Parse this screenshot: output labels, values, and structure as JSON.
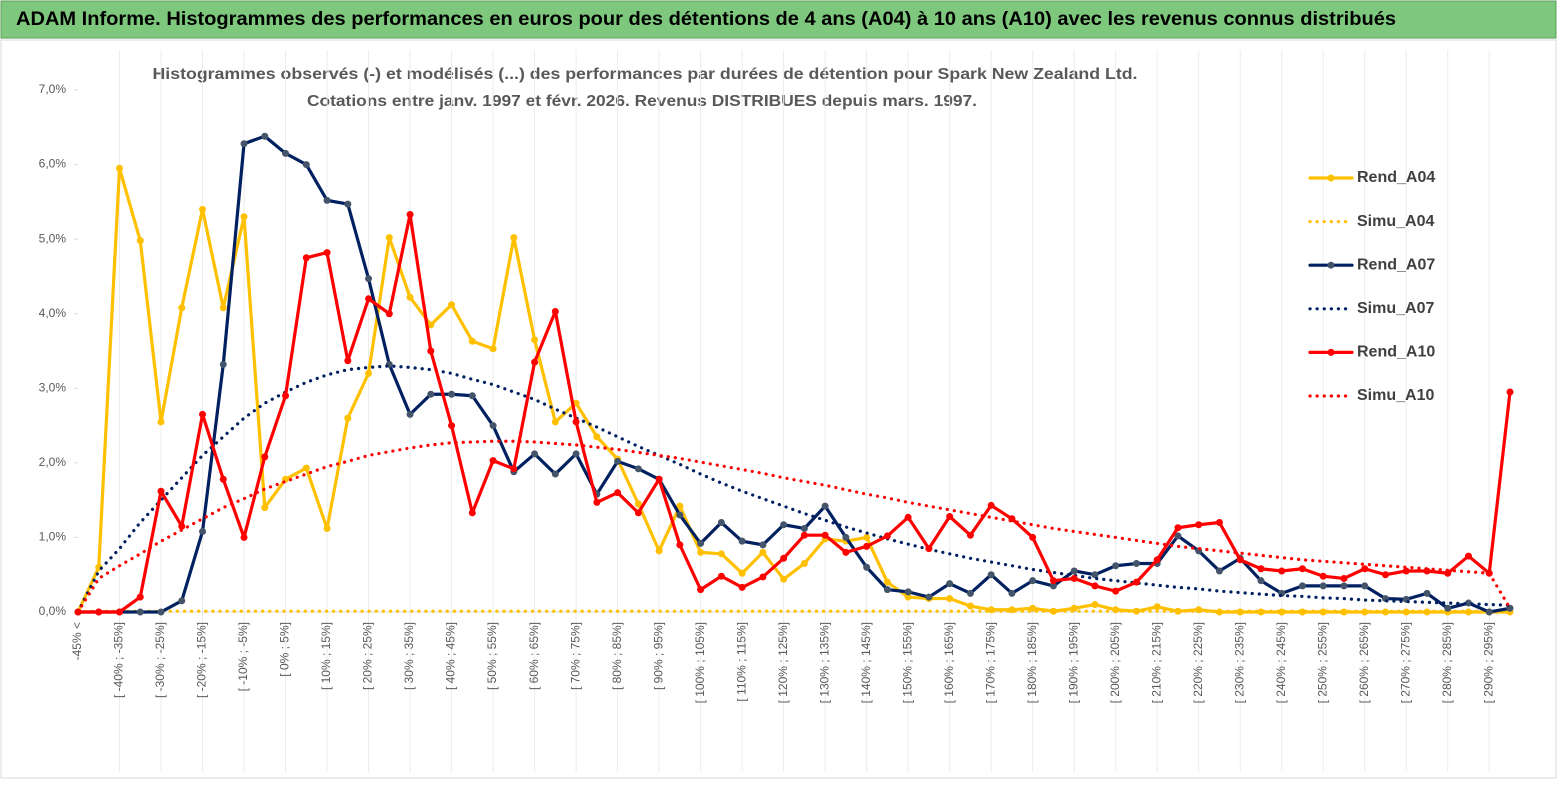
{
  "header": {
    "title": "ADAM Informe. Histogrammes des performances en euros pour des détentions de 4 ans (A04) à 10 ans (A10) avec les revenus connus distribués"
  },
  "chart_data": {
    "type": "line",
    "title": "Histogrammes observés (-) et modélisés (...) des performances par durées de détention pour Spark New Zealand Ltd.",
    "subtitle": "Cotations entre janv. 1997 et févr. 2026. Revenus DISTRIBUES depuis mars. 1997.",
    "categories": [
      "-45% <",
      null,
      "[ -40% ; -35%]",
      null,
      "[ -30% ; -25%]",
      null,
      "[ -20% ; -15%]",
      null,
      "[ -10% ; -5%]",
      null,
      "[ 0% ; 5%]",
      null,
      "[ 10% ; 15%]",
      null,
      "[ 20% ; 25%]",
      null,
      "[ 30% ; 35%]",
      null,
      "[ 40% ; 45%]",
      null,
      "[ 50% ; 55%]",
      null,
      "[ 60% ; 65%]",
      null,
      "[ 70% ; 75%]",
      null,
      "[ 80% ; 85%]",
      null,
      "[ 90% ; 95%]",
      null,
      "[ 100% ; 105%]",
      null,
      "[ 110% ; 115%]",
      null,
      "[ 120% ; 125%]",
      null,
      "[ 130% ; 135%]",
      null,
      "[ 140% ; 145%]",
      null,
      "[ 150% ; 155%]",
      null,
      "[ 160% ; 165%]",
      null,
      "[ 170% ; 175%]",
      null,
      "[ 180% ; 185%]",
      null,
      "[ 190% ; 195%]",
      null,
      "[ 200% ; 205%]",
      null,
      "[ 210% ; 215%]",
      null,
      "[ 220% ; 225%]",
      null,
      "[ 230% ; 235%]",
      null,
      "[ 240% ; 245%]",
      null,
      "[ 250% ; 255%]",
      null,
      "[ 260% ; 265%]",
      null,
      "[ 270% ; 275%]",
      null,
      "[ 280% ; 285%]",
      null,
      "[ 290% ; 295%]",
      null
    ],
    "ylim": [
      0,
      7
    ],
    "yticks": [
      {
        "value": 0,
        "label": "0,0%"
      },
      {
        "value": 1,
        "label": "1,0%"
      },
      {
        "value": 2,
        "label": "2,0%"
      },
      {
        "value": 3,
        "label": "3,0%"
      },
      {
        "value": 4,
        "label": "4,0%"
      },
      {
        "value": 5,
        "label": "5,0%"
      },
      {
        "value": 6,
        "label": "6,0%"
      },
      {
        "value": 7,
        "label": "7,0%"
      }
    ],
    "xgrid": true,
    "legend": "right",
    "series": [
      {
        "name": "Rend_A04",
        "color": "#ffc000",
        "marker_color": "#ffc000",
        "dash": "solid",
        "marker": true,
        "values": [
          0,
          0.6,
          5.95,
          4.98,
          2.55,
          4.08,
          5.4,
          4.08,
          5.3,
          1.4,
          1.78,
          1.93,
          1.12,
          2.6,
          3.2,
          5.02,
          4.22,
          3.85,
          4.12,
          3.63,
          3.53,
          5.02,
          3.65,
          2.55,
          2.8,
          2.35,
          2.05,
          1.45,
          0.82,
          1.42,
          0.8,
          0.78,
          0.52,
          0.8,
          0.44,
          0.65,
          0.98,
          0.95,
          1.0,
          0.4,
          0.2,
          0.18,
          0.18,
          0.08,
          0.03,
          0.03,
          0.05,
          0.01,
          0.05,
          0.1,
          0.03,
          0.01,
          0.07,
          0.01,
          0.03,
          0,
          0,
          0,
          0,
          0,
          0,
          0,
          0,
          0,
          0,
          0,
          0,
          0,
          0,
          0
        ]
      },
      {
        "name": "Simu_A04",
        "color": "#ffc000",
        "dash": "dotted",
        "marker": false,
        "values": [
          0,
          0.01,
          0.01,
          0.01,
          0.01,
          0.01,
          0.01,
          0.01,
          0.01,
          0.01,
          0.01,
          0.01,
          0.01,
          0.01,
          0.01,
          0.01,
          0.01,
          0.01,
          0.01,
          0.01,
          0.01,
          0.01,
          0.01,
          0.01,
          0.01,
          0.01,
          0.01,
          0.01,
          0.01,
          0.01,
          0.01,
          0.01,
          0.01,
          0.01,
          0.01,
          0.01,
          0.01,
          0.01,
          0.01,
          0.01,
          0.01,
          0.01,
          0.01,
          0.01,
          0.01,
          0.01,
          0.01,
          0.01,
          0.01,
          0.01,
          0.01,
          0.01,
          0.01,
          0.01,
          0.01,
          0.01,
          0.01,
          0.01,
          0.01,
          0.01,
          0.01,
          0.01,
          0.01,
          0.01,
          0.01,
          0.01,
          0.01,
          0.01,
          0.01,
          0.01
        ]
      },
      {
        "name": "Rend_A07",
        "color": "#002060",
        "marker_color": "#44546a",
        "dash": "solid",
        "marker": true,
        "values": [
          0,
          0,
          0,
          0,
          0,
          0.15,
          1.08,
          3.32,
          6.28,
          6.38,
          6.15,
          6.0,
          5.52,
          5.47,
          4.47,
          3.32,
          2.65,
          2.92,
          2.92,
          2.9,
          2.5,
          1.88,
          2.12,
          1.85,
          2.12,
          1.58,
          2.02,
          1.92,
          1.78,
          1.3,
          0.92,
          1.2,
          0.95,
          0.9,
          1.17,
          1.12,
          1.42,
          1.0,
          0.6,
          0.3,
          0.27,
          0.2,
          0.38,
          0.25,
          0.5,
          0.25,
          0.42,
          0.35,
          0.55,
          0.5,
          0.62,
          0.65,
          0.65,
          1.02,
          0.82,
          0.55,
          0.72,
          0.42,
          0.25,
          0.35,
          0.35,
          0.35,
          0.35,
          0.18,
          0.17,
          0.25,
          0.05,
          0.12,
          0,
          0.05
        ]
      },
      {
        "name": "Simu_A07",
        "color": "#002060",
        "dash": "dotted",
        "marker": false,
        "values": [
          0,
          0.55,
          0.85,
          1.2,
          1.5,
          1.8,
          2.1,
          2.35,
          2.6,
          2.8,
          2.95,
          3.08,
          3.18,
          3.25,
          3.28,
          3.3,
          3.28,
          3.25,
          3.2,
          3.12,
          3.05,
          2.95,
          2.85,
          2.72,
          2.6,
          2.48,
          2.35,
          2.22,
          2.1,
          1.98,
          1.85,
          1.73,
          1.62,
          1.52,
          1.42,
          1.32,
          1.23,
          1.14,
          1.06,
          0.98,
          0.91,
          0.84,
          0.78,
          0.72,
          0.67,
          0.62,
          0.57,
          0.53,
          0.49,
          0.45,
          0.42,
          0.39,
          0.36,
          0.33,
          0.31,
          0.28,
          0.26,
          0.24,
          0.22,
          0.21,
          0.19,
          0.18,
          0.16,
          0.15,
          0.14,
          0.13,
          0.12,
          0.11,
          0.1,
          0.09
        ]
      },
      {
        "name": "Rend_A10",
        "color": "#ff0000",
        "marker_color": "#ff0000",
        "dash": "solid",
        "marker": true,
        "values": [
          0,
          0,
          0,
          0.2,
          1.62,
          1.15,
          2.65,
          1.78,
          1.0,
          2.08,
          2.9,
          4.75,
          4.82,
          3.37,
          4.2,
          4.0,
          5.33,
          3.5,
          2.5,
          1.33,
          2.03,
          1.92,
          3.35,
          4.03,
          2.55,
          1.47,
          1.6,
          1.33,
          1.78,
          0.9,
          0.3,
          0.48,
          0.33,
          0.47,
          0.72,
          1.03,
          1.03,
          0.8,
          0.88,
          1.02,
          1.27,
          0.85,
          1.28,
          1.03,
          1.43,
          1.25,
          1.0,
          0.42,
          0.45,
          0.35,
          0.28,
          0.4,
          0.7,
          1.13,
          1.17,
          1.2,
          0.7,
          0.58,
          0.55,
          0.58,
          0.48,
          0.45,
          0.58,
          0.5,
          0.55,
          0.55,
          0.52,
          0.75,
          0.52,
          2.95
        ]
      },
      {
        "name": "Simu_A10",
        "color": "#ff0000",
        "dash": "dotted",
        "marker": false,
        "values": [
          0,
          0.45,
          0.62,
          0.78,
          0.95,
          1.1,
          1.25,
          1.4,
          1.52,
          1.65,
          1.75,
          1.85,
          1.95,
          2.02,
          2.1,
          2.15,
          2.2,
          2.24,
          2.27,
          2.28,
          2.29,
          2.29,
          2.28,
          2.26,
          2.24,
          2.21,
          2.18,
          2.14,
          2.1,
          2.06,
          2.01,
          1.96,
          1.91,
          1.86,
          1.8,
          1.75,
          1.7,
          1.64,
          1.58,
          1.53,
          1.47,
          1.42,
          1.37,
          1.32,
          1.27,
          1.22,
          1.17,
          1.12,
          1.08,
          1.04,
          1.0,
          0.96,
          0.92,
          0.88,
          0.85,
          0.82,
          0.79,
          0.76,
          0.73,
          0.7,
          0.68,
          0.66,
          0.64,
          0.62,
          0.6,
          0.58,
          0.56,
          0.54,
          0.52,
          0.05
        ]
      }
    ]
  }
}
